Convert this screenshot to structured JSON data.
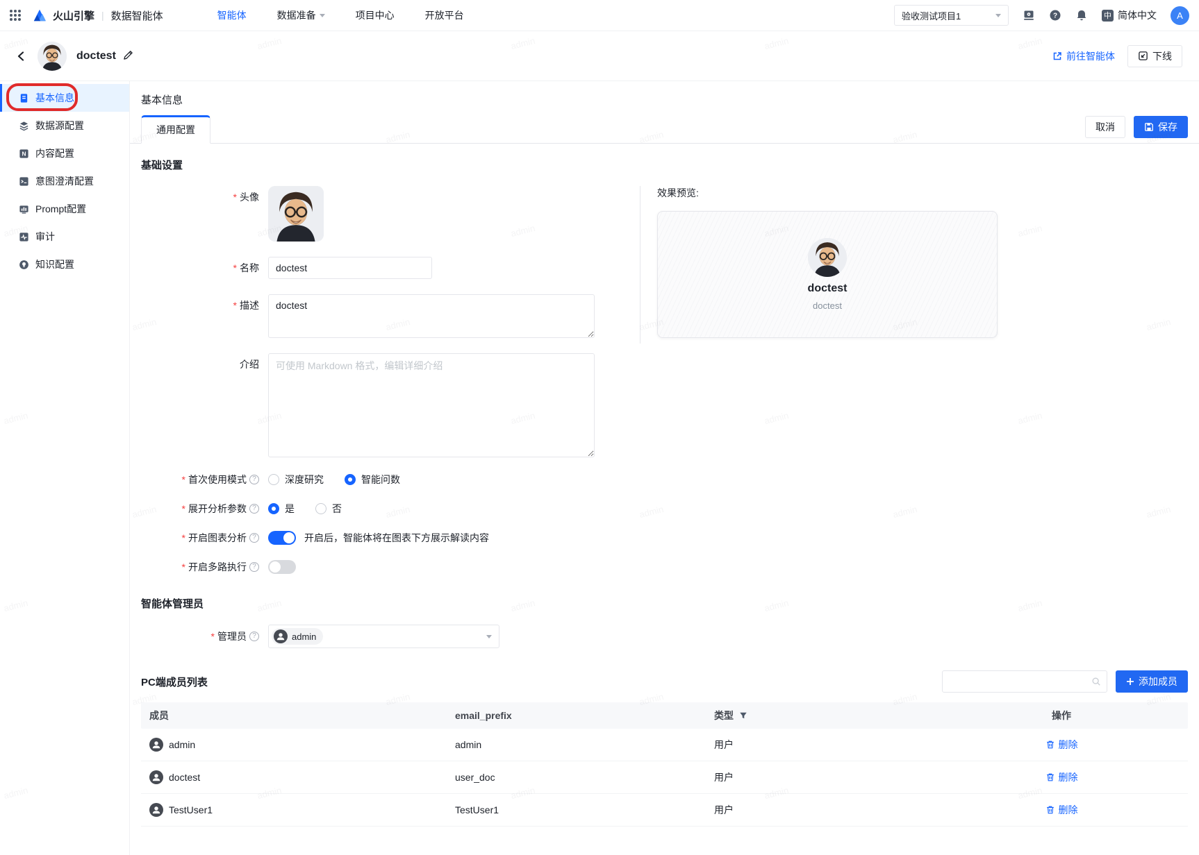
{
  "watermark": {
    "text": "admin"
  },
  "topnav": {
    "brand": "火山引擎",
    "product": "数据智能体",
    "items": [
      {
        "label": "智能体"
      },
      {
        "label": "数据准备"
      },
      {
        "label": "项目中心"
      },
      {
        "label": "开放平台"
      }
    ],
    "project_select": "验收测试项目1",
    "language": "简体中文",
    "language_badge": "中",
    "avatar_initial": "A"
  },
  "header": {
    "title": "doctest",
    "go_to_agent": "前往智能体",
    "offline": "下线"
  },
  "sidebar": {
    "items": [
      {
        "label": "基本信息"
      },
      {
        "label": "数据源配置"
      },
      {
        "label": "内容配置"
      },
      {
        "label": "意图澄清配置"
      },
      {
        "label": "Prompt配置"
      },
      {
        "label": "审计"
      },
      {
        "label": "知识配置"
      }
    ]
  },
  "main": {
    "title": "基本信息",
    "tab": "通用配置",
    "cancel": "取消",
    "save": "保存",
    "section_basic": "基础设置",
    "fields": {
      "avatar_label": "头像",
      "name_label": "名称",
      "name_value": "doctest",
      "desc_label": "描述",
      "desc_value": "doctest",
      "intro_label": "介绍",
      "intro_placeholder": "可使用 Markdown 格式，编辑详细介绍",
      "first_mode_label": "首次使用模式",
      "first_mode_options": [
        "深度研究",
        "智能问数"
      ],
      "expand_label": "展开分析参数",
      "expand_options": [
        "是",
        "否"
      ],
      "chart_label": "开启图表分析",
      "chart_hint": "开启后，智能体将在图表下方展示解读内容",
      "multi_label": "开启多路执行"
    },
    "preview": {
      "title": "效果预览:",
      "name": "doctest",
      "desc": "doctest"
    },
    "admin_section": "智能体管理员",
    "admin_label": "管理员",
    "admin_value": "admin",
    "members": {
      "title": "PC端成员列表",
      "add_button": "添加成员",
      "columns": [
        "成员",
        "email_prefix",
        "类型",
        "操作"
      ],
      "rows": [
        {
          "name": "admin",
          "email": "admin",
          "type": "用户",
          "action": "删除"
        },
        {
          "name": "doctest",
          "email": "user_doc",
          "type": "用户",
          "action": "删除"
        },
        {
          "name": "TestUser1",
          "email": "TestUser1",
          "type": "用户",
          "action": "删除"
        }
      ]
    }
  }
}
